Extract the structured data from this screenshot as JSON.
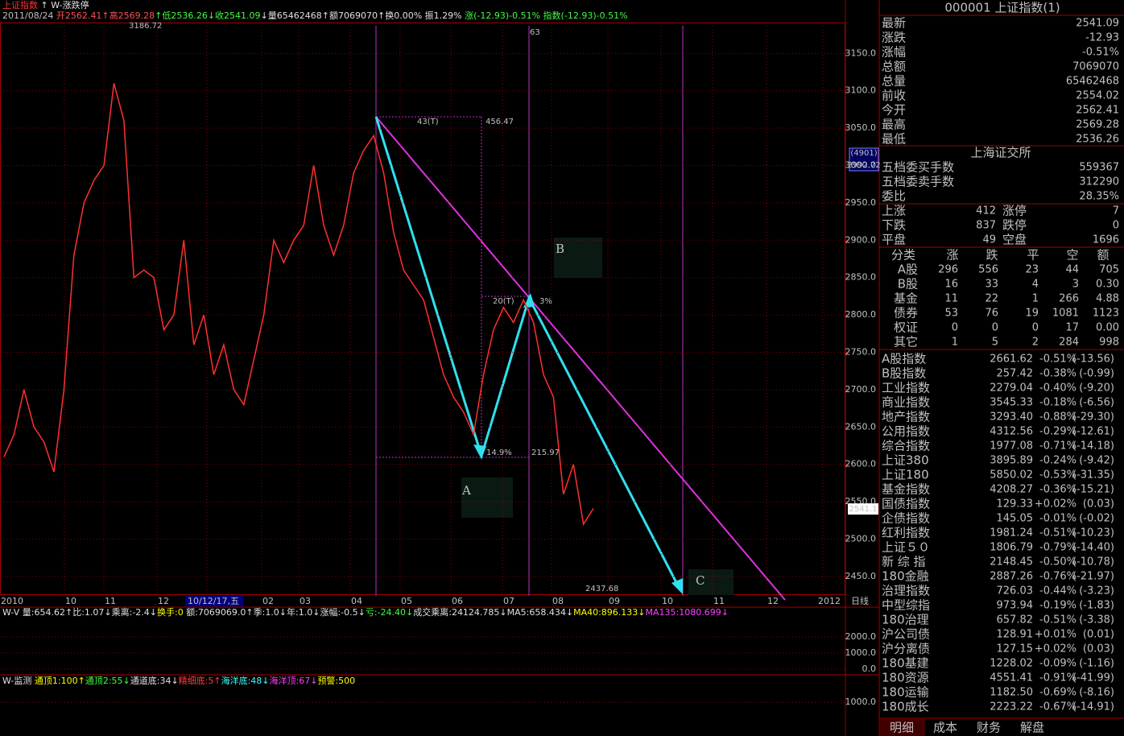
{
  "header": {
    "line1": [
      {
        "text": "上证指数",
        "color": "#ff3030"
      },
      {
        "text": " ↑ W-涨跌停",
        "color": "#e0e0e0"
      }
    ],
    "line2": [
      {
        "text": "2011/08/24 ",
        "color": "#c0c0c0"
      },
      {
        "text": "开2562.41",
        "color": "#ff5050"
      },
      {
        "text": "↑高2569.28",
        "color": "#ff5050"
      },
      {
        "text": "↑低2536.26",
        "color": "#40ff40"
      },
      {
        "text": "↓收2541.09",
        "color": "#40ff40"
      },
      {
        "text": "↓量65462468",
        "color": "#e0e0e0"
      },
      {
        "text": "↑额7069070",
        "color": "#e0e0e0"
      },
      {
        "text": "↑换0.00% 振1.29% ",
        "color": "#e0e0e0"
      },
      {
        "text": "涨(-12.93)-0.51% 指数(-12.93)-0.51%",
        "color": "#40ff40"
      }
    ]
  },
  "price_chart": {
    "ylim": [
      2424,
      3187
    ],
    "yticks": [
      {
        "value": 2450,
        "label": "2450.0"
      },
      {
        "value": 2500,
        "label": "2500.0"
      },
      {
        "value": 2550,
        "label": "2550.0"
      },
      {
        "value": 2600,
        "label": "2600.0"
      },
      {
        "value": 2650,
        "label": "2650.0"
      },
      {
        "value": 2700,
        "label": "2700.0"
      },
      {
        "value": 2750,
        "label": "2750.0"
      },
      {
        "value": 2800,
        "label": "2800.0"
      },
      {
        "value": 2850,
        "label": "2850.0"
      },
      {
        "value": 2900,
        "label": "2900.0"
      },
      {
        "value": 2950,
        "label": "2950.0"
      },
      {
        "value": 3000,
        "label": "3000.0"
      },
      {
        "value": 3050,
        "label": "3050.0"
      },
      {
        "value": 3100,
        "label": "3100.0"
      },
      {
        "value": 3150,
        "label": "3150.0"
      }
    ],
    "closes": [
      2610,
      2640,
      2700,
      2650,
      2630,
      2590,
      2700,
      2880,
      2950,
      2980,
      3000,
      3110,
      3060,
      2850,
      2860,
      2850,
      2780,
      2800,
      2900,
      2760,
      2800,
      2720,
      2760,
      2700,
      2680,
      2740,
      2800,
      2900,
      2870,
      2900,
      2920,
      3000,
      2920,
      2880,
      2920,
      2990,
      3020,
      3040,
      2990,
      2910,
      2860,
      2840,
      2820,
      2770,
      2720,
      2690,
      2670,
      2640,
      2720,
      2780,
      2810,
      2790,
      2820,
      2790,
      2720,
      2690,
      2560,
      2600,
      2520,
      2541
    ],
    "color": "#ff3030",
    "xlabels": [
      "2010",
      "10",
      "11",
      "12",
      "10/12/17,五",
      "02",
      "03",
      "04",
      "05",
      "06",
      "07",
      "08",
      "09",
      "10",
      "11",
      "12",
      "2012",
      "日线"
    ],
    "annotations": [
      "3186.72",
      "2437.68",
      "43(T)",
      "456.47",
      "20(T)",
      "3%",
      "14.9%",
      "215.97",
      "63",
      "B",
      "A",
      "C"
    ],
    "badges": [
      "(4901)",
      "2992.72",
      "2541.1"
    ]
  },
  "volume_panel": {
    "header": [
      {
        "text": "W-V ",
        "color": "#e0e0e0"
      },
      {
        "text": "量:654.62↑比:1.07↓乘离:-2.4↓",
        "color": "#e0e0e0"
      },
      {
        "text": "换手:0 ",
        "color": "#ffff00"
      },
      {
        "text": "额:7069069.0↑季:1.0↓年:1.0↓涨幅:-0.5↓",
        "color": "#e0e0e0"
      },
      {
        "text": "亏:-24.40↓",
        "color": "#40ff40"
      },
      {
        "text": "成交乘离:24124.785↓MA5:658.434↓",
        "color": "#e0e0e0"
      },
      {
        "text": "MA40:896.133↓",
        "color": "#ffff00"
      },
      {
        "text": "MA135:1080.699↓",
        "color": "#ff40ff"
      }
    ],
    "ylim": [
      0,
      3700
    ],
    "yticks": [
      {
        "value": 0,
        "label": "0.0"
      },
      {
        "value": 1000,
        "label": "1000.0"
      },
      {
        "value": 2000,
        "label": "2000.0"
      }
    ]
  },
  "monitor_panel": {
    "header": [
      {
        "text": "W-监测 ",
        "color": "#e0e0e0"
      },
      {
        "text": "通顶1:100↑",
        "color": "#ffff00"
      },
      {
        "text": "通顶2:55↓",
        "color": "#40ff40"
      },
      {
        "text": "通道底:34↓",
        "color": "#e0e0e0"
      },
      {
        "text": "精细底:5↑",
        "color": "#ff4040"
      },
      {
        "text": "海洋底:48↓",
        "color": "#40ffff"
      },
      {
        "text": "海洋顶:67↓",
        "color": "#ff40ff"
      },
      {
        "text": "预警:500",
        "color": "#ffff00"
      }
    ],
    "ylim": [
      0,
      1800
    ],
    "yticks": [
      {
        "value": 1000,
        "label": "1000.0"
      }
    ]
  },
  "quote_panel": {
    "title": "000001 上证指数(1)",
    "quotes": [
      {
        "label": "最新",
        "value": "2541.09",
        "color": "#40ff40"
      },
      {
        "label": "涨跌",
        "value": "-12.93",
        "color": "#40ff40"
      },
      {
        "label": "涨幅",
        "value": "-0.51%",
        "color": "#40ff40"
      },
      {
        "label": "总额",
        "value": "7069070",
        "color": "#e0e0e0"
      },
      {
        "label": "总量",
        "value": "65462468",
        "color": "#e0e0e0"
      },
      {
        "label": "前收",
        "value": "2554.02",
        "color": "#e0e0e0"
      },
      {
        "label": "今开",
        "value": "2562.41",
        "color": "#ff5050"
      },
      {
        "label": "最高",
        "value": "2569.28",
        "color": "#ff5050"
      },
      {
        "label": "最低",
        "value": "2536.26",
        "color": "#40ff40"
      }
    ],
    "exchange": "上海证交所",
    "orders": [
      {
        "label": "五档委买手数",
        "value": "559367",
        "color": "#ff5050"
      },
      {
        "label": "五档委卖手数",
        "value": "312290",
        "color": "#e0e0e0"
      },
      {
        "label": "委比",
        "value": "28.35%",
        "color": "#ff5050"
      }
    ],
    "breadth": [
      [
        {
          "text": "上涨",
          "color": "#e0e0e0"
        },
        {
          "text": "412",
          "color": "#ff5050"
        },
        {
          "text": "涨停",
          "color": "#e0e0e0"
        },
        {
          "text": "7",
          "color": "#ff5050"
        }
      ],
      [
        {
          "text": "下跌",
          "color": "#e0e0e0"
        },
        {
          "text": "837",
          "color": "#40ff40"
        },
        {
          "text": "跌停",
          "color": "#e0e0e0"
        },
        {
          "text": "0",
          "color": "#40ff40"
        }
      ],
      [
        {
          "text": "平盘",
          "color": "#e0e0e0"
        },
        {
          "text": "49",
          "color": "#e0e0e0"
        },
        {
          "text": "空盘",
          "color": "#e0e0e0"
        },
        {
          "text": "1696",
          "color": "#e0e0e0"
        }
      ]
    ],
    "table_header": [
      "分类",
      "涨",
      "跌",
      "平",
      "空",
      "额"
    ],
    "table_rows": [
      [
        "A股",
        "296",
        "556",
        "23",
        "44",
        "705"
      ],
      [
        "B股",
        "16",
        "33",
        "4",
        "3",
        "0.30"
      ],
      [
        "基金",
        "11",
        "22",
        "1",
        "266",
        "4.88"
      ],
      [
        "债券",
        "53",
        "76",
        "19",
        "1081",
        "1123"
      ],
      [
        "权证",
        "0",
        "0",
        "0",
        "17",
        "0.00"
      ],
      [
        "其它",
        "1",
        "5",
        "2",
        "284",
        "998"
      ]
    ],
    "indices": [
      {
        "name": "A股指数",
        "value": "2661.62",
        "pct": "-0.51%",
        "change": "(-13.56)",
        "up": false
      },
      {
        "name": "B股指数",
        "value": "257.42",
        "pct": "-0.38%",
        "change": "(-0.99)",
        "up": false
      },
      {
        "name": "工业指数",
        "value": "2279.04",
        "pct": "-0.40%",
        "change": "(-9.20)",
        "up": false
      },
      {
        "name": "商业指数",
        "value": "3545.33",
        "pct": "-0.18%",
        "change": "(-6.56)",
        "up": false
      },
      {
        "name": "地产指数",
        "value": "3293.40",
        "pct": "-0.88%",
        "change": "(-29.30)",
        "up": false
      },
      {
        "name": "公用指数",
        "value": "4312.56",
        "pct": "-0.29%",
        "change": "(-12.61)",
        "up": false
      },
      {
        "name": "综合指数",
        "value": "1977.08",
        "pct": "-0.71%",
        "change": "(-14.18)",
        "up": false
      },
      {
        "name": "上证380",
        "value": "3895.89",
        "pct": "-0.24%",
        "change": "(-9.42)",
        "up": false
      },
      {
        "name": "上证180",
        "value": "5850.02",
        "pct": "-0.53%",
        "change": "(-31.35)",
        "up": false
      },
      {
        "name": "基金指数",
        "value": "4208.27",
        "pct": "-0.36%",
        "change": "(-15.21)",
        "up": false
      },
      {
        "name": "国债指数",
        "value": "129.33",
        "pct": "+0.02%",
        "change": "(0.03)",
        "up": true
      },
      {
        "name": "企债指数",
        "value": "145.05",
        "pct": "-0.01%",
        "change": "(-0.02)",
        "up": false
      },
      {
        "name": "红利指数",
        "value": "1981.24",
        "pct": "-0.51%",
        "change": "(-10.23)",
        "up": false
      },
      {
        "name": "上证５０",
        "value": "1806.79",
        "pct": "-0.79%",
        "change": "(-14.40)",
        "up": false
      },
      {
        "name": "新 综 指",
        "value": "2148.45",
        "pct": "-0.50%",
        "change": "(-10.78)",
        "up": false
      },
      {
        "name": "180金融",
        "value": "2887.26",
        "pct": "-0.76%",
        "change": "(-21.97)",
        "up": false
      },
      {
        "name": "治理指数",
        "value": "726.03",
        "pct": "-0.44%",
        "change": "(-3.23)",
        "up": false
      },
      {
        "name": "中型综指",
        "value": "973.94",
        "pct": "-0.19%",
        "change": "(-1.83)",
        "up": false
      },
      {
        "name": "180治理",
        "value": "657.82",
        "pct": "-0.51%",
        "change": "(-3.38)",
        "up": false
      },
      {
        "name": "沪公司债",
        "value": "128.91",
        "pct": "+0.01%",
        "change": "(0.01)",
        "up": true
      },
      {
        "name": "沪分离债",
        "value": "127.15",
        "pct": "+0.02%",
        "change": "(0.03)",
        "up": true
      },
      {
        "name": "180基建",
        "value": "1228.02",
        "pct": "-0.09%",
        "change": "(-1.16)",
        "up": false
      },
      {
        "name": "180资源",
        "value": "4551.41",
        "pct": "-0.91%",
        "change": "(-41.99)",
        "up": false
      },
      {
        "name": "180运输",
        "value": "1182.50",
        "pct": "-0.69%",
        "change": "(-8.16)",
        "up": false
      },
      {
        "name": "180成长",
        "value": "2223.22",
        "pct": "-0.67%",
        "change": "(-14.91)",
        "up": false
      }
    ],
    "tabs": [
      "明细",
      "成本",
      "财务",
      "解盘"
    ]
  }
}
